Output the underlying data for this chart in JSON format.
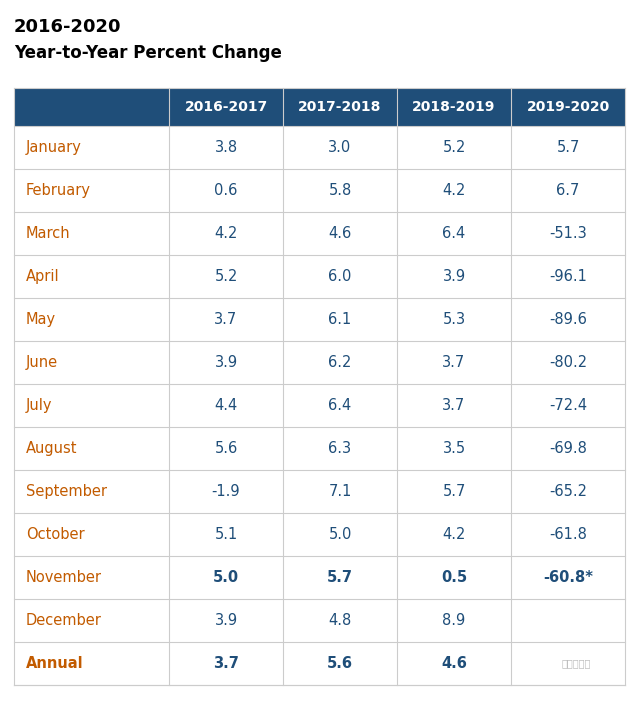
{
  "title1": "2016-2020",
  "title2": "Year-to-Year Percent Change",
  "header_bg": "#1F4E79",
  "header_text_color": "#FFFFFF",
  "header_cols": [
    "2016-2017",
    "2017-2018",
    "2018-2019",
    "2019-2020"
  ],
  "row_label_color": "#C25B00",
  "data_color": "#1F4E79",
  "rows": [
    {
      "label": "January",
      "bold": false,
      "values": [
        "3.8",
        "3.0",
        "5.2",
        "5.7"
      ],
      "bold_vals": [
        false,
        false,
        false,
        false
      ]
    },
    {
      "label": "February",
      "bold": false,
      "values": [
        "0.6",
        "5.8",
        "4.2",
        "6.7"
      ],
      "bold_vals": [
        false,
        false,
        false,
        false
      ]
    },
    {
      "label": "March",
      "bold": false,
      "values": [
        "4.2",
        "4.6",
        "6.4",
        "-51.3"
      ],
      "bold_vals": [
        false,
        false,
        false,
        false
      ]
    },
    {
      "label": "April",
      "bold": false,
      "values": [
        "5.2",
        "6.0",
        "3.9",
        "-96.1"
      ],
      "bold_vals": [
        false,
        false,
        false,
        false
      ]
    },
    {
      "label": "May",
      "bold": false,
      "values": [
        "3.7",
        "6.1",
        "5.3",
        "-89.6"
      ],
      "bold_vals": [
        false,
        false,
        false,
        false
      ]
    },
    {
      "label": "June",
      "bold": false,
      "values": [
        "3.9",
        "6.2",
        "3.7",
        "-80.2"
      ],
      "bold_vals": [
        false,
        false,
        false,
        false
      ]
    },
    {
      "label": "July",
      "bold": false,
      "values": [
        "4.4",
        "6.4",
        "3.7",
        "-72.4"
      ],
      "bold_vals": [
        false,
        false,
        false,
        false
      ]
    },
    {
      "label": "August",
      "bold": false,
      "values": [
        "5.6",
        "6.3",
        "3.5",
        "-69.8"
      ],
      "bold_vals": [
        false,
        false,
        false,
        false
      ]
    },
    {
      "label": "September",
      "bold": false,
      "values": [
        "-1.9",
        "7.1",
        "5.7",
        "-65.2"
      ],
      "bold_vals": [
        false,
        false,
        false,
        false
      ]
    },
    {
      "label": "October",
      "bold": false,
      "values": [
        "5.1",
        "5.0",
        "4.2",
        "-61.8"
      ],
      "bold_vals": [
        false,
        false,
        false,
        false
      ]
    },
    {
      "label": "November",
      "bold": false,
      "values": [
        "5.0",
        "5.7",
        "0.5",
        "-60.8*"
      ],
      "bold_vals": [
        true,
        true,
        true,
        true
      ]
    },
    {
      "label": "December",
      "bold": false,
      "values": [
        "3.9",
        "4.8",
        "8.9",
        ""
      ],
      "bold_vals": [
        false,
        false,
        false,
        false
      ]
    },
    {
      "label": "Annual",
      "bold": true,
      "values": [
        "3.7",
        "5.6",
        "4.6",
        ""
      ],
      "bold_vals": [
        true,
        true,
        true,
        false
      ]
    }
  ],
  "line_color": "#CCCCCC",
  "bg_color": "#FFFFFF",
  "title_color": "#000000"
}
